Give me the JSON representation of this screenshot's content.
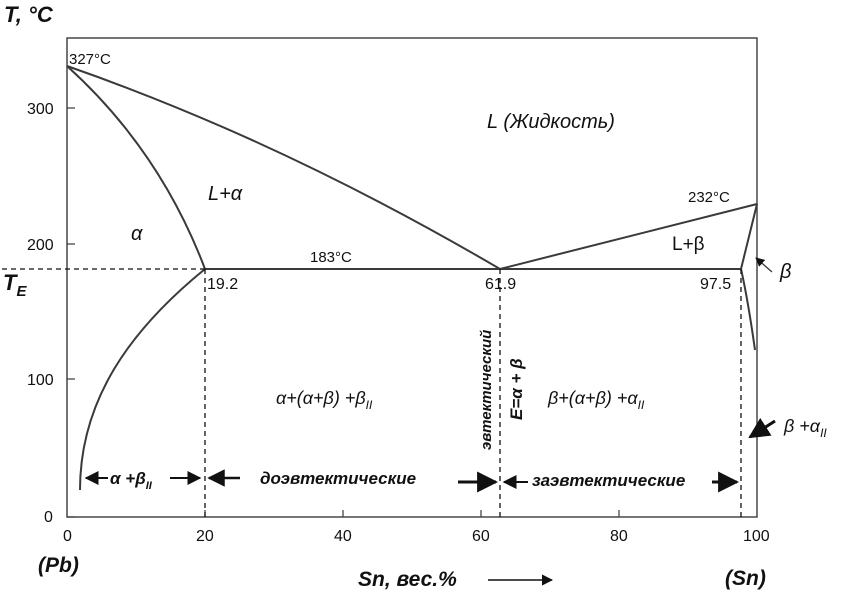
{
  "axes": {
    "y_title": "T, °C",
    "y_ticks": [
      "0",
      "100",
      "200",
      "300"
    ],
    "te_label": "T",
    "te_sub": "E",
    "x_ticks": [
      "0",
      "20",
      "40",
      "60",
      "80",
      "100"
    ],
    "x_title": "Sn, вес.%",
    "left_element": "(Pb)",
    "right_element": "(Sn)"
  },
  "points": {
    "pb_melt": "327°C",
    "sn_melt": "232°C",
    "eutectic_temp": "183°C",
    "alpha_limit": "19.2",
    "eutectic_comp": "61.9",
    "beta_limit": "97.5"
  },
  "regions": {
    "liquid": "L (Жидкость)",
    "l_alpha": "L+α",
    "alpha": "α",
    "l_beta": "L+β",
    "beta": "β",
    "hypo": "α+(α+β) +β",
    "hypo_sub": "II",
    "hyper": "β+(α+β) +α",
    "hyper_sub": "II",
    "beta_alpha": "β +α",
    "beta_alpha_sub": "II"
  },
  "annotations": {
    "eutectic_word": "эвтектический",
    "eutectic_eq": "E=α + β",
    "alpha_beta_range": "α +β",
    "alpha_beta_range_sub": "II",
    "hypoeutectic": "доэвтектические",
    "hypereutectic": "заэвтектические"
  },
  "colors": {
    "line": "#3a3a3a",
    "text": "#111111"
  }
}
